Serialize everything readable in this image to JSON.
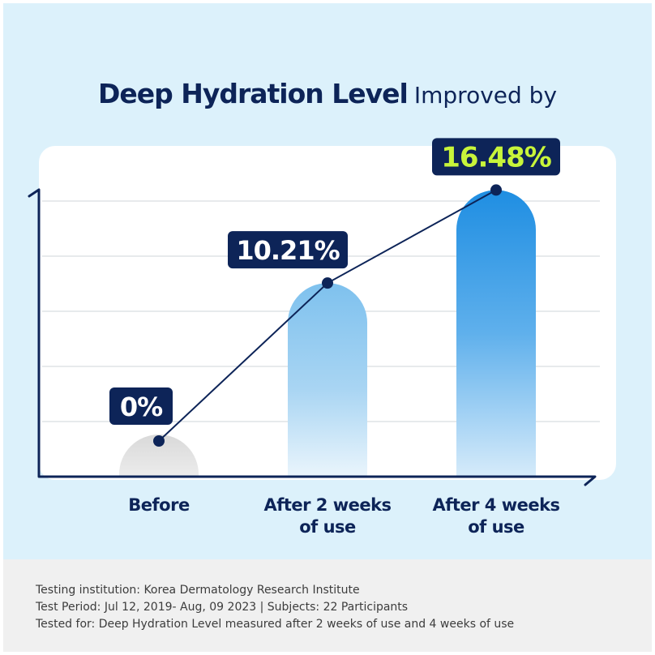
{
  "title": {
    "bold": "Deep Hydration Level",
    "light": "Improved by"
  },
  "chart_data": {
    "type": "bar",
    "categories": [
      "Before",
      "After 2 weeks of use",
      "After 4 weeks of use"
    ],
    "category_lines": [
      [
        "Before"
      ],
      [
        "After 2 weeks",
        "of use"
      ],
      [
        "After 4 weeks",
        "of use"
      ]
    ],
    "values": [
      0,
      10.21,
      16.48
    ],
    "value_labels": [
      "0%",
      "10.21%",
      "16.48%"
    ],
    "ylim": [
      0,
      18
    ],
    "grid": true,
    "xlabel": "",
    "ylabel": ""
  },
  "footer": {
    "lines": [
      "Testing institution: Korea Dermatology Research Institute",
      "Test Period: Jul 12, 2019- Aug, 09 2023  |  Subjects: 22 Participants",
      "Tested for: Deep Hydration Level measured after 2 weeks of use and 4 weeks of use"
    ]
  },
  "colors": {
    "background": "#dcf1fb",
    "navy": "#0d2458",
    "bar_before": "#d9d9d9",
    "bar_2w": "#7ec1ee",
    "bar_4w": "#1f8ee2",
    "highlight_text": "#c8f53a",
    "grid": "#cfd4da"
  }
}
